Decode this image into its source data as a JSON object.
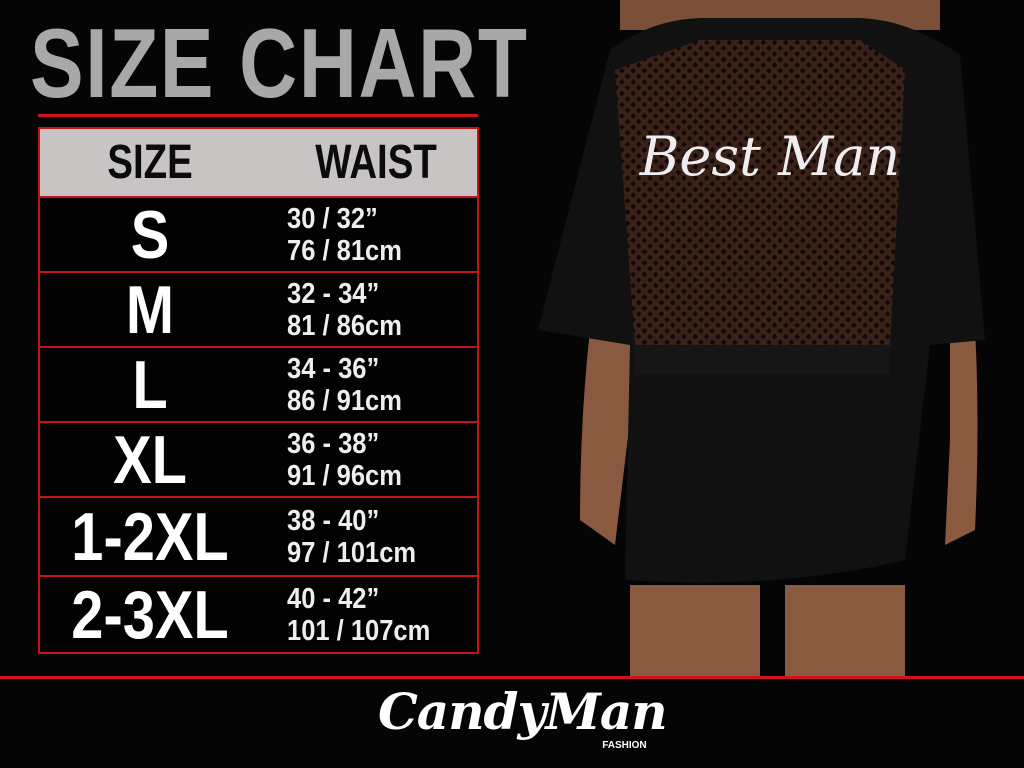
{
  "title": "SIZE CHART",
  "table": {
    "headers": [
      "SIZE",
      "WAIST"
    ],
    "rows": [
      {
        "size": "S",
        "in": "30 / 32”",
        "cm": "76 / 81cm"
      },
      {
        "size": "M",
        "in": "32 - 34”",
        "cm": "81 / 86cm"
      },
      {
        "size": "L",
        "in": "34 - 36”",
        "cm": "86 / 91cm"
      },
      {
        "size": "XL",
        "in": "36 - 38”",
        "cm": "91 / 96cm"
      },
      {
        "size": "1-2XL",
        "in": "38 - 40”",
        "cm": "97 / 101cm"
      },
      {
        "size": "2-3XL",
        "in": "40 - 42”",
        "cm": "101 / 107cm"
      }
    ]
  },
  "photo": {
    "garment_text": "Best Man"
  },
  "brand": {
    "name": "CandyMan",
    "sub": "FASHION"
  },
  "colors": {
    "accent": "#d0141a",
    "header_bg": "#c8c4c4",
    "title": "#a8a8a8"
  }
}
